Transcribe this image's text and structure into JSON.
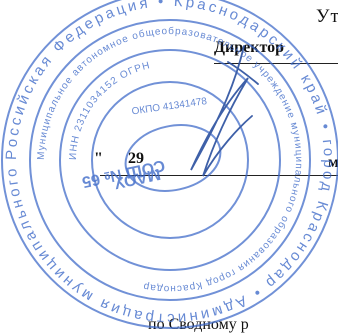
{
  "document": {
    "approve_label": "Ут",
    "position_title": "Директор",
    "date_quote": "\"",
    "date_day": "29",
    "date_month_fragment": "м",
    "footer_text": "по Сводному р"
  },
  "stamp": {
    "outer_text": "Российская Федерация • Краснодарский край • город Краснодар • Администрация муниципального образования город Краснодар • ",
    "ring_text": "Муниципальное автономное общеобразовательное учреждение муниципального образования город Краснодар",
    "inn_text": "ИНН 2311034152 ОГРН",
    "okpo_text": "ОКПО 41341478",
    "center_name": "МАОУ",
    "center_number": "СОШ № 65",
    "ink_color": "#3a67c7"
  }
}
